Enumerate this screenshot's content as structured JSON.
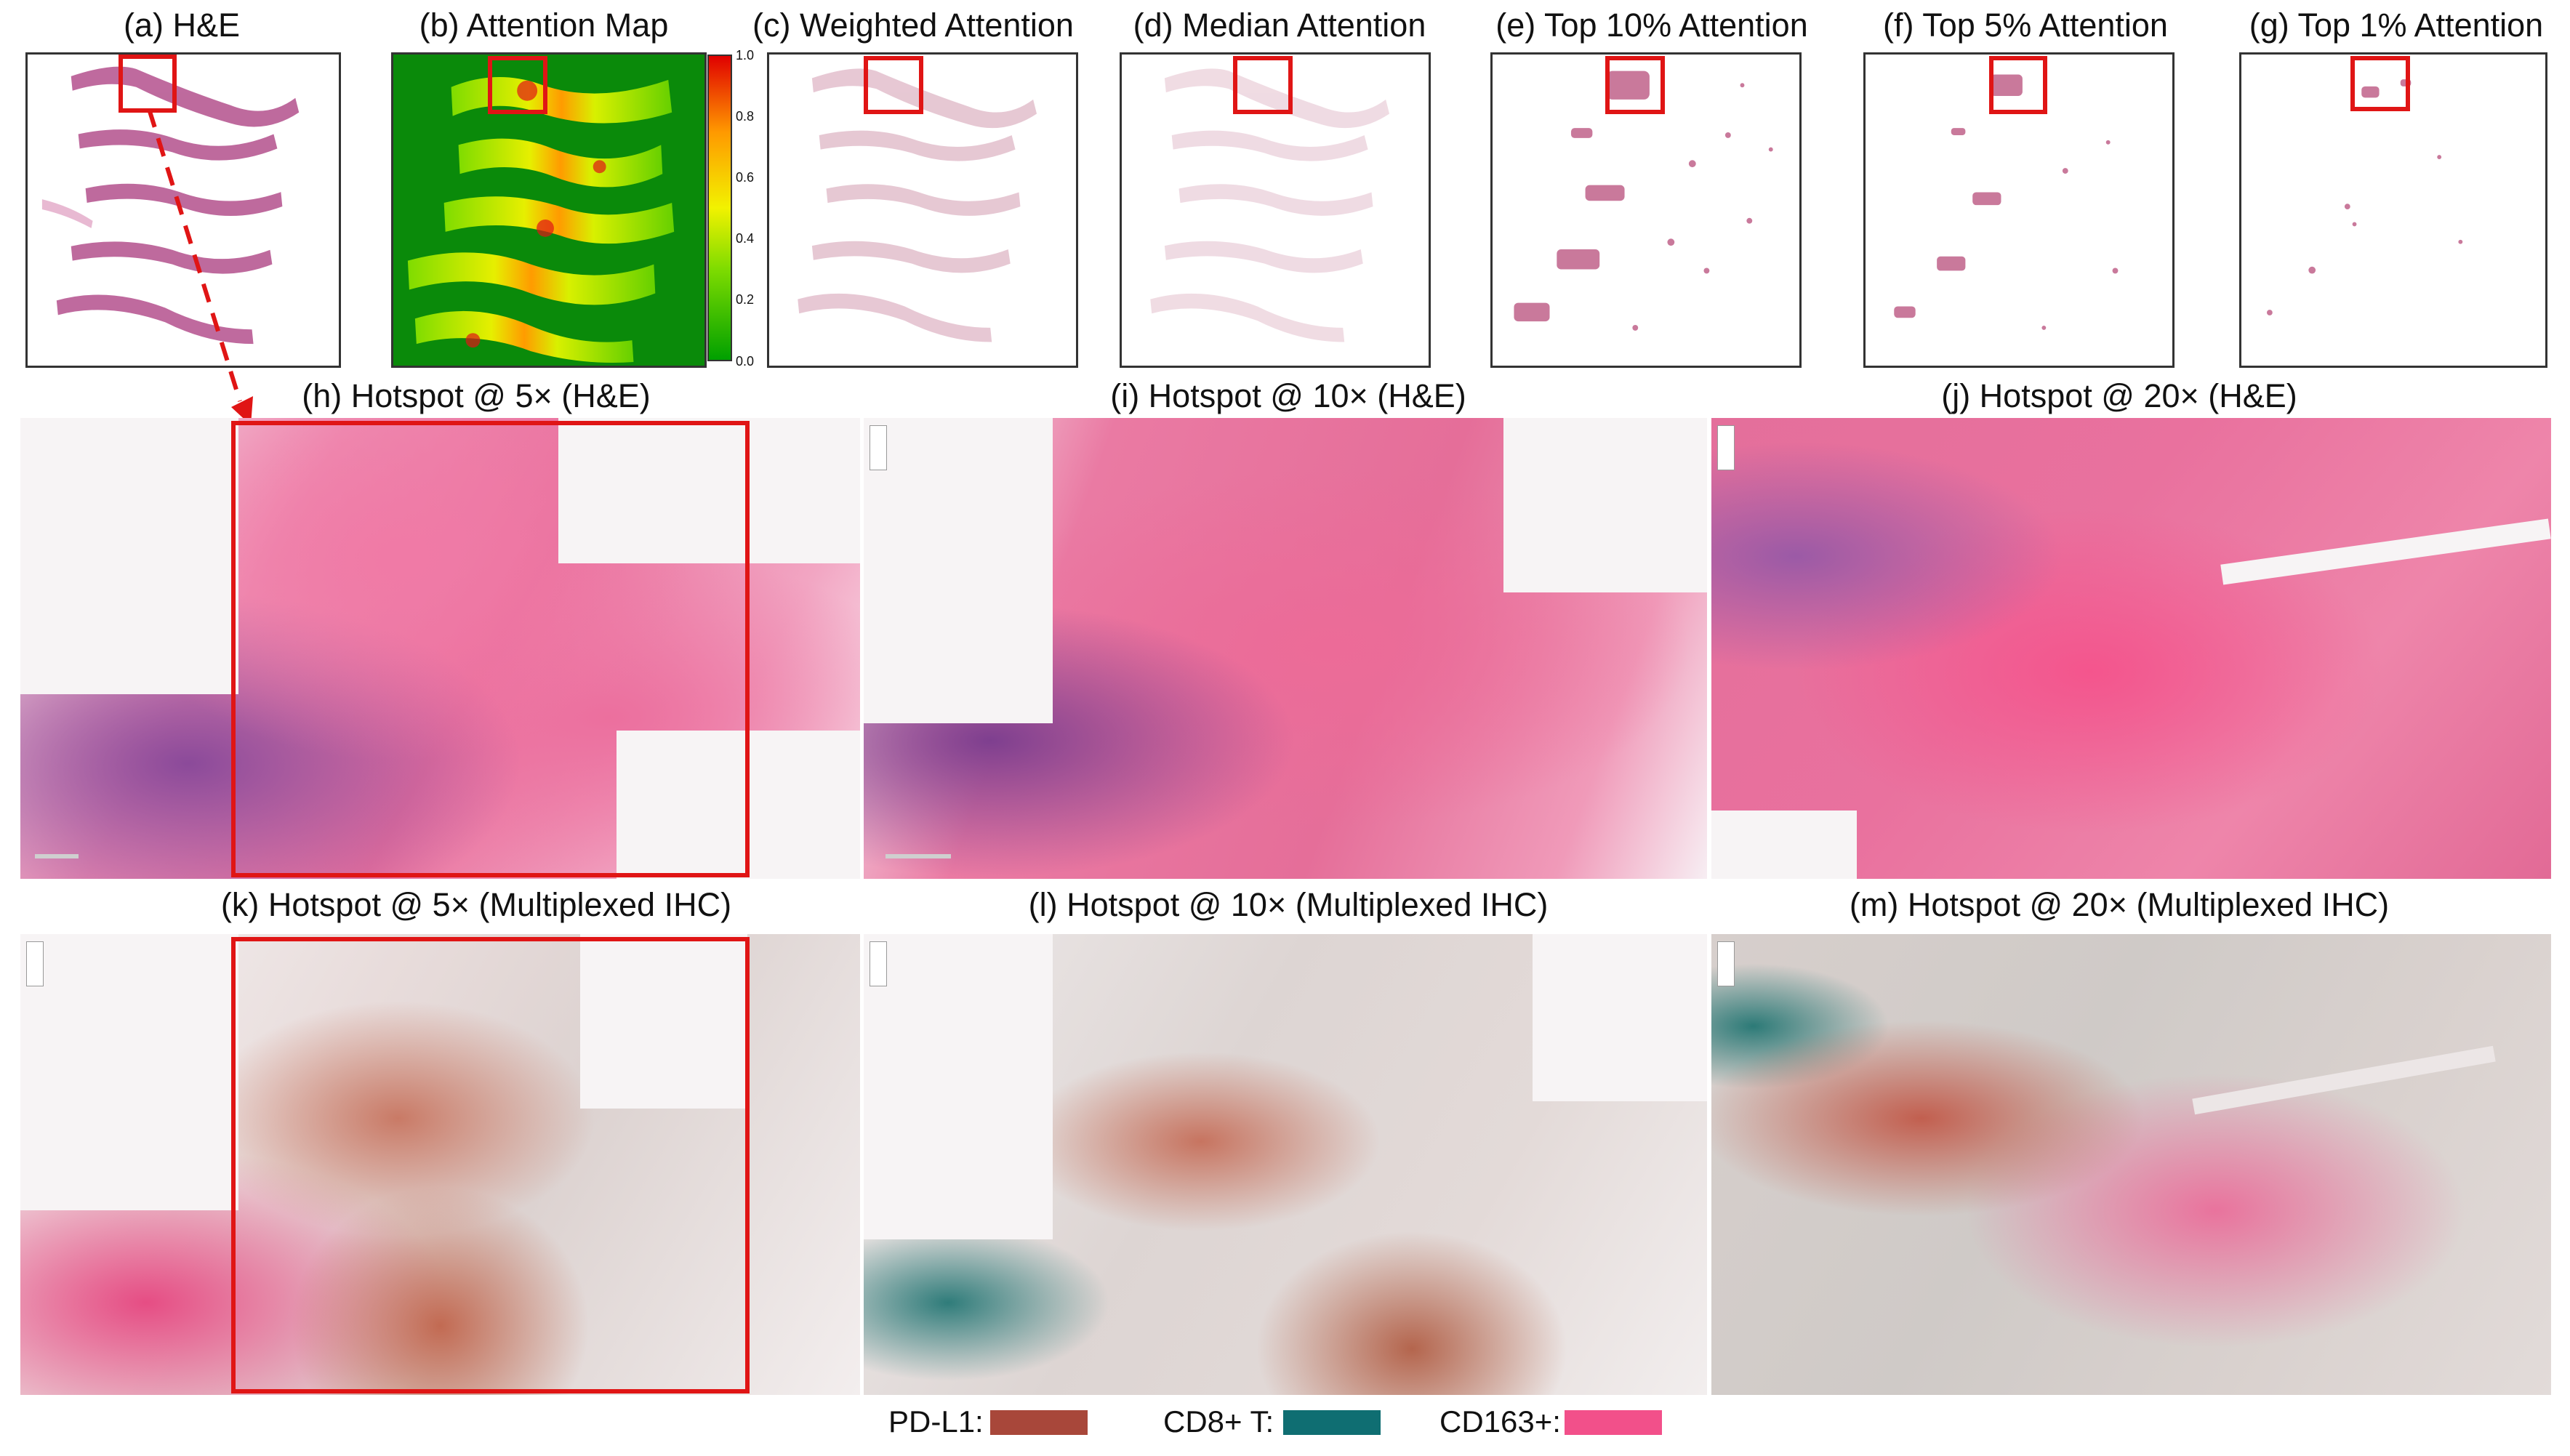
{
  "panels": {
    "a": "(a) H&E",
    "b": "(b) Attention Map",
    "c": "(c) Weighted Attention",
    "d": "(d) Median Attention",
    "e": "(e) Top 10% Attention",
    "f": "(f) Top 5% Attention",
    "g": "(g) Top 1% Attention",
    "h": "(h) Hotspot @ 5× (H&E)",
    "i": "(i) Hotspot @ 10× (H&E)",
    "j": "(j) Hotspot @ 20× (H&E)",
    "k": "(k) Hotspot @ 5× (Multiplexed IHC)",
    "l": "(l)  Hotspot @ 10× (Multiplexed IHC)",
    "m": "(m) Hotspot @ 20× (Multiplexed IHC)"
  },
  "colorbar": {
    "ticks": [
      "1.0",
      "0.8",
      "0.6",
      "0.4",
      "0.2",
      "0.0"
    ],
    "colors": [
      "#00a000",
      "#7fdc00",
      "#f2f200",
      "#ff9900",
      "#e00000"
    ]
  },
  "legend": [
    {
      "label": "PD-L1:",
      "color": "#a8473a"
    },
    {
      "label": "CD8+ T:",
      "color": "#0f6e72"
    },
    {
      "label": "CD163+:",
      "color": "#f2508a"
    }
  ],
  "colors": {
    "highlight_box": "#e01515",
    "he_tissue": "#b85a93",
    "attention_background": "#0a8a0a"
  }
}
